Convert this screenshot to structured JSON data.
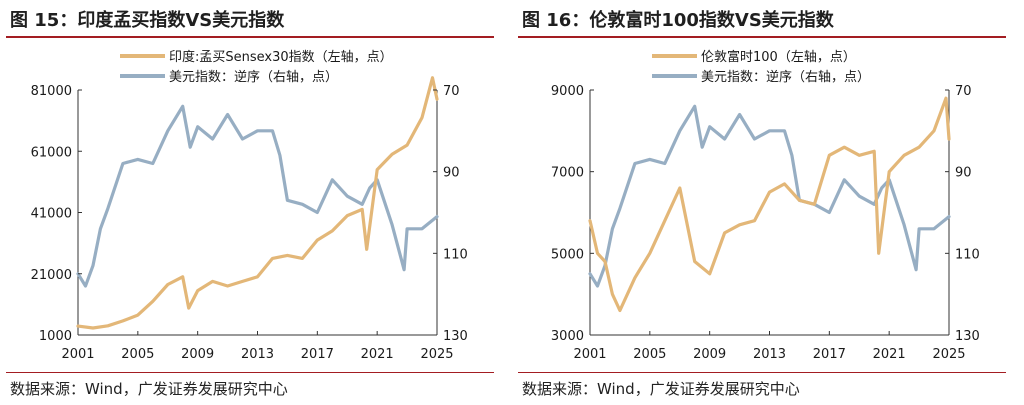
{
  "colors": {
    "gold": "#e3b778",
    "blue": "#97aec3",
    "rule": "#a31d22"
  },
  "chart_data": [
    {
      "type": "line",
      "title": "图 15：印度孟买指数VS美元指数",
      "source": "数据来源：Wind，广发证券发展研究中心",
      "xlim": [
        2001,
        2025
      ],
      "x_ticks": [
        "2001",
        "2005",
        "2009",
        "2013",
        "2017",
        "2021",
        "2025"
      ],
      "left_axis": {
        "ticks": [
          "81000",
          "61000",
          "41000",
          "21000",
          "1000"
        ],
        "range": [
          1000,
          81000
        ]
      },
      "right_axis": {
        "ticks": [
          "70",
          "90",
          "110",
          "130"
        ],
        "range": [
          70,
          130
        ],
        "inverted": true
      },
      "legend_position": "top-center",
      "series": [
        {
          "name": "印度:孟买Sensex30指数（左轴，点）",
          "axis": "left",
          "color": "#e3b778",
          "x": [
            2001,
            2002,
            2003,
            2004,
            2005,
            2006,
            2007,
            2008,
            2008.4,
            2009,
            2010,
            2011,
            2012,
            2013,
            2014,
            2015,
            2016,
            2017,
            2018,
            2019,
            2020,
            2020.3,
            2021,
            2022,
            2023,
            2024,
            2024.7,
            2025
          ],
          "values": [
            3900,
            3300,
            4000,
            5600,
            7500,
            12000,
            17500,
            20000,
            9800,
            15500,
            18500,
            17000,
            18500,
            20000,
            26000,
            27000,
            26000,
            32000,
            35000,
            40000,
            42000,
            29000,
            55000,
            60000,
            63000,
            72000,
            85000,
            78000
          ]
        },
        {
          "name": "美元指数：逆序（右轴，点）",
          "axis": "right",
          "color": "#97aec3",
          "x": [
            2001,
            2001.5,
            2002,
            2002.5,
            2003,
            2004,
            2005,
            2006,
            2007,
            2008,
            2008.5,
            2009,
            2010,
            2011,
            2012,
            2013,
            2014,
            2014.5,
            2015,
            2016,
            2017,
            2018,
            2019,
            2020,
            2020.5,
            2021,
            2022,
            2022.8,
            2023,
            2024,
            2025
          ],
          "values": [
            115,
            118,
            113,
            104,
            99,
            88,
            87,
            88,
            80,
            74,
            84,
            79,
            82,
            76,
            82,
            80,
            80,
            86,
            97,
            98,
            100,
            92,
            96,
            98,
            94,
            92,
            103,
            114,
            104,
            104,
            101
          ]
        }
      ]
    },
    {
      "type": "line",
      "title": "图 16：伦敦富时100指数VS美元指数",
      "source": "数据来源：Wind，广发证券发展研究中心",
      "xlim": [
        2001,
        2025
      ],
      "x_ticks": [
        "2001",
        "2005",
        "2009",
        "2013",
        "2017",
        "2021",
        "2025"
      ],
      "left_axis": {
        "ticks": [
          "9000",
          "7000",
          "5000",
          "3000"
        ],
        "range": [
          3000,
          9000
        ]
      },
      "right_axis": {
        "ticks": [
          "70",
          "90",
          "110",
          "130"
        ],
        "range": [
          70,
          130
        ],
        "inverted": true
      },
      "legend_position": "top-center",
      "series": [
        {
          "name": "伦敦富时100（左轴，点）",
          "axis": "left",
          "color": "#e3b778",
          "x": [
            2001,
            2001.5,
            2002,
            2002.5,
            2003,
            2004,
            2005,
            2006,
            2007,
            2008,
            2009,
            2010,
            2011,
            2012,
            2013,
            2014,
            2015,
            2016,
            2017,
            2018,
            2019,
            2020,
            2020.3,
            2021,
            2022,
            2023,
            2024,
            2024.8,
            2025
          ],
          "values": [
            5800,
            5000,
            4800,
            4000,
            3600,
            4400,
            5000,
            5800,
            6600,
            4800,
            4500,
            5500,
            5700,
            5800,
            6500,
            6700,
            6300,
            6200,
            7400,
            7600,
            7400,
            7500,
            5000,
            7000,
            7400,
            7600,
            8000,
            8800,
            7800
          ]
        },
        {
          "name": "美元指数：逆序（右轴，点）",
          "axis": "right",
          "color": "#97aec3",
          "x": [
            2001,
            2001.5,
            2002,
            2002.5,
            2003,
            2004,
            2005,
            2006,
            2007,
            2008,
            2008.5,
            2009,
            2010,
            2011,
            2012,
            2013,
            2014,
            2014.5,
            2015,
            2016,
            2017,
            2018,
            2019,
            2020,
            2020.5,
            2021,
            2022,
            2022.8,
            2023,
            2024,
            2025
          ],
          "values": [
            115,
            118,
            113,
            104,
            99,
            88,
            87,
            88,
            80,
            74,
            84,
            79,
            82,
            76,
            82,
            80,
            80,
            86,
            97,
            98,
            100,
            92,
            96,
            98,
            94,
            92,
            103,
            114,
            104,
            104,
            101
          ]
        }
      ]
    }
  ]
}
